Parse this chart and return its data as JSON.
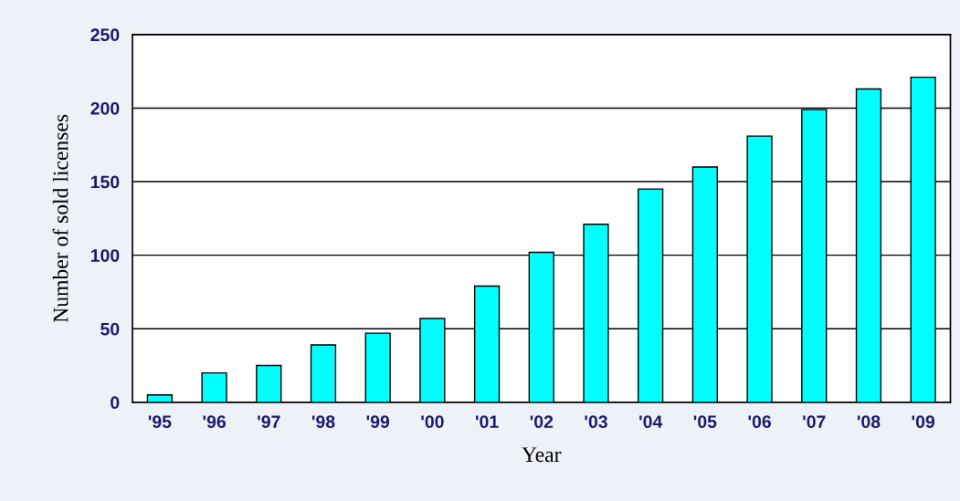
{
  "chart_data": {
    "type": "bar",
    "xlabel": "Year",
    "ylabel": "Number of sold licenses",
    "categories": [
      "'95",
      "'96",
      "'97",
      "'98",
      "'99",
      "'00",
      "'01",
      "'02",
      "'03",
      "'04",
      "'05",
      "'06",
      "'07",
      "'08",
      "'09"
    ],
    "values": [
      5,
      20,
      25,
      39,
      47,
      57,
      79,
      102,
      121,
      145,
      160,
      181,
      199,
      213,
      221
    ],
    "color": "#00ffff",
    "ylim": [
      0,
      250
    ],
    "yticks": [
      0,
      50,
      100,
      150,
      200,
      250
    ],
    "grid": "y",
    "legend": false
  }
}
